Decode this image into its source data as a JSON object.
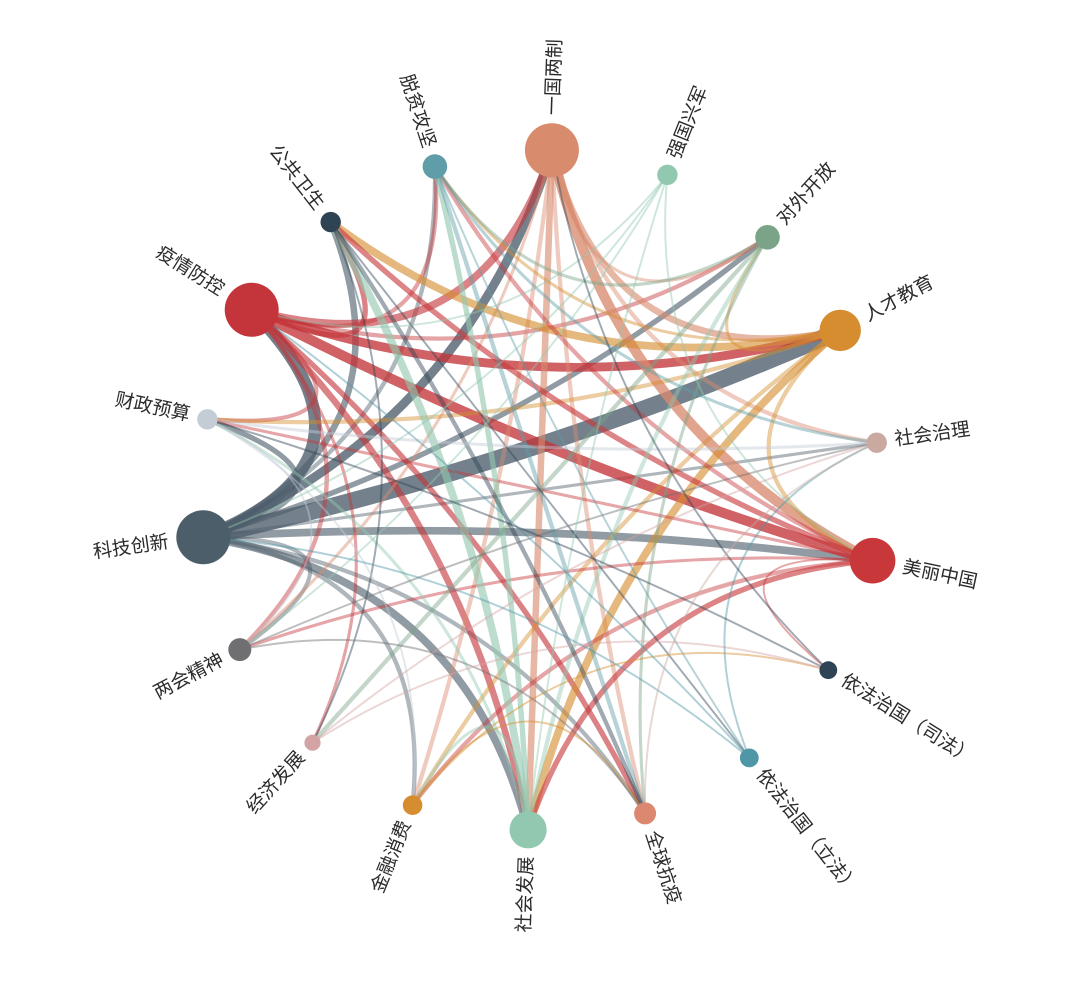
{
  "diagram": {
    "type": "chord-network",
    "nodes": [
      {
        "id": "yiguoliangzhi",
        "label": "一国两制",
        "color": "#d98b6e",
        "weight": 5,
        "icon": "circle-node"
      },
      {
        "id": "qiangguoxingjun",
        "label": "强国兴军",
        "color": "#93c8b0",
        "weight": 1,
        "icon": "circle-node"
      },
      {
        "id": "duiwaikaifang",
        "label": "对外开放",
        "color": "#7aa388",
        "weight": 1.5,
        "icon": "circle-node"
      },
      {
        "id": "rencaijiaoyu",
        "label": "人才教育",
        "color": "#d58d2f",
        "weight": 3.5,
        "icon": "circle-node"
      },
      {
        "id": "shehuizhili",
        "label": "社会治理",
        "color": "#c9a9a0",
        "weight": 1,
        "icon": "circle-node"
      },
      {
        "id": "meilizhongguo",
        "label": "美丽中国",
        "color": "#c8383b",
        "weight": 4,
        "icon": "circle-node"
      },
      {
        "id": "yifazhiguo_sifa",
        "label": "依法治国（司法）",
        "color": "#2e4354",
        "weight": 0.7,
        "icon": "circle-node"
      },
      {
        "id": "yifazhiguo_lifa",
        "label": "依法治国（立法）",
        "color": "#4f96a6",
        "weight": 0.8,
        "icon": "circle-node"
      },
      {
        "id": "quanqiukangyi",
        "label": "全球抗疫",
        "color": "#dc8870",
        "weight": 1.2,
        "icon": "circle-node"
      },
      {
        "id": "shehuifazhan",
        "label": "社会发展",
        "color": "#93c8b0",
        "weight": 3,
        "icon": "circle-node"
      },
      {
        "id": "jinrongxiaofei",
        "label": "金融消费",
        "color": "#d58d2f",
        "weight": 0.9,
        "icon": "circle-node"
      },
      {
        "id": "jingjifazhan",
        "label": "经济发展",
        "color": "#d4a3a3",
        "weight": 0.5,
        "icon": "circle-node"
      },
      {
        "id": "lianghuijingshen",
        "label": "两会精神",
        "color": "#6f6f72",
        "weight": 1.3,
        "icon": "circle-node"
      },
      {
        "id": "kejichuangxin",
        "label": "科技创新",
        "color": "#4d5e6b",
        "weight": 5,
        "icon": "circle-node"
      },
      {
        "id": "caizhengyusuan",
        "label": "财政预算",
        "color": "#c4ccd6",
        "weight": 1,
        "icon": "circle-node"
      },
      {
        "id": "yiqingfangkong",
        "label": "疫情防控",
        "color": "#c3353a",
        "weight": 5,
        "icon": "circle-node"
      },
      {
        "id": "gonggongweisheng",
        "label": "公共卫生",
        "color": "#2e4354",
        "weight": 1,
        "icon": "circle-node"
      },
      {
        "id": "tuopingongjian",
        "label": "脱贫攻坚",
        "color": "#5f9ea8",
        "weight": 1.5,
        "icon": "circle-node"
      }
    ],
    "links": [
      [
        "kejichuangxin",
        "rencaijiaoyu",
        14
      ],
      [
        "kejichuangxin",
        "yiqingfangkong",
        10
      ],
      [
        "kejichuangxin",
        "yiguoliangzhi",
        7
      ],
      [
        "kejichuangxin",
        "meilizhongguo",
        6
      ],
      [
        "kejichuangxin",
        "shehuifazhan",
        6
      ],
      [
        "kejichuangxin",
        "gonggongweisheng",
        5
      ],
      [
        "kejichuangxin",
        "caizhengyusuan",
        4
      ],
      [
        "kejichuangxin",
        "lianghuijingshen",
        3
      ],
      [
        "kejichuangxin",
        "jinrongxiaofei",
        3
      ],
      [
        "kejichuangxin",
        "duiwaikaifang",
        4
      ],
      [
        "kejichuangxin",
        "tuopingongjian",
        3
      ],
      [
        "kejichuangxin",
        "quanqiukangyi",
        3
      ],
      [
        "kejichuangxin",
        "shehuizhili",
        2
      ],
      [
        "yiqingfangkong",
        "meilizhongguo",
        8
      ],
      [
        "yiqingfangkong",
        "rencaijiaoyu",
        7
      ],
      [
        "yiqingfangkong",
        "shehuifazhan",
        5
      ],
      [
        "yiqingfangkong",
        "yiguoliangzhi",
        6
      ],
      [
        "yiqingfangkong",
        "quanqiukangyi",
        4
      ],
      [
        "yiqingfangkong",
        "lianghuijingshen",
        3
      ],
      [
        "yiqingfangkong",
        "gonggongweisheng",
        4
      ],
      [
        "yiqingfangkong",
        "duiwaikaifang",
        3
      ],
      [
        "yiqingfangkong",
        "caizhengyusuan",
        3
      ],
      [
        "yiqingfangkong",
        "jingjifazhan",
        2
      ],
      [
        "yiqingfangkong",
        "tuopingongjian",
        3
      ],
      [
        "yiguoliangzhi",
        "meilizhongguo",
        8
      ],
      [
        "yiguoliangzhi",
        "shehuifazhan",
        5
      ],
      [
        "yiguoliangzhi",
        "rencaijiaoyu",
        5
      ],
      [
        "yiguoliangzhi",
        "jinrongxiaofei",
        3
      ],
      [
        "yiguoliangzhi",
        "quanqiukangyi",
        3
      ],
      [
        "yiguoliangzhi",
        "shehuizhili",
        3
      ],
      [
        "yiguoliangzhi",
        "duiwaikaifang",
        2
      ],
      [
        "yiguoliangzhi",
        "lianghuijingshen",
        2
      ],
      [
        "rencaijiaoyu",
        "shehuifazhan",
        6
      ],
      [
        "rencaijiaoyu",
        "gonggongweisheng",
        6
      ],
      [
        "rencaijiaoyu",
        "meilizhongguo",
        3
      ],
      [
        "rencaijiaoyu",
        "caizhengyusuan",
        3
      ],
      [
        "rencaijiaoyu",
        "jinrongxiaofei",
        3
      ],
      [
        "rencaijiaoyu",
        "tuopingongjian",
        2
      ],
      [
        "rencaijiaoyu",
        "duiwaikaifang",
        2
      ],
      [
        "meilizhongguo",
        "shehuifazhan",
        4
      ],
      [
        "meilizhongguo",
        "gonggongweisheng",
        4
      ],
      [
        "meilizhongguo",
        "tuopingongjian",
        3
      ],
      [
        "meilizhongguo",
        "jinrongxiaofei",
        3
      ],
      [
        "meilizhongguo",
        "caizhengyusuan",
        2
      ],
      [
        "meilizhongguo",
        "lianghuijingshen",
        2
      ],
      [
        "meilizhongguo",
        "yifazhiguo_sifa",
        1
      ],
      [
        "shehuifazhan",
        "gonggongweisheng",
        6
      ],
      [
        "shehuifazhan",
        "tuopingongjian",
        4
      ],
      [
        "shehuifazhan",
        "duiwaikaifang",
        3
      ],
      [
        "shehuifazhan",
        "caizhengyusuan",
        2
      ],
      [
        "shehuifazhan",
        "jinrongxiaofei",
        2
      ],
      [
        "duiwaikaifang",
        "jingjifazhan",
        3
      ],
      [
        "duiwaikaifang",
        "tuopingongjian",
        2
      ],
      [
        "duiwaikaifang",
        "quanqiukangyi",
        2
      ],
      [
        "tuopingongjian",
        "quanqiukangyi",
        3
      ],
      [
        "tuopingongjian",
        "shehuizhili",
        2
      ],
      [
        "tuopingongjian",
        "yifazhiguo_lifa",
        1
      ],
      [
        "gonggongweisheng",
        "quanqiukangyi",
        3
      ],
      [
        "gonggongweisheng",
        "yifazhiguo_lifa",
        1
      ],
      [
        "gonggongweisheng",
        "jingjifazhan",
        1
      ],
      [
        "caizhengyusuan",
        "shehuizhili",
        2
      ],
      [
        "caizhengyusuan",
        "lianghuijingshen",
        1
      ],
      [
        "caizhengyusuan",
        "jinrongxiaofei",
        1
      ],
      [
        "lianghuijingshen",
        "shehuizhili",
        1
      ],
      [
        "lianghuijingshen",
        "quanqiukangyi",
        1
      ],
      [
        "jinrongxiaofei",
        "quanqiukangyi",
        1
      ],
      [
        "jinrongxiaofei",
        "yifazhiguo_sifa",
        1
      ],
      [
        "jingjifazhan",
        "shehuizhili",
        1
      ],
      [
        "jingjifazhan",
        "yifazhiguo_sifa",
        1
      ],
      [
        "qiangguoxingjun",
        "kejichuangxin",
        1
      ],
      [
        "qiangguoxingjun",
        "yiqingfangkong",
        1
      ],
      [
        "qiangguoxingjun",
        "shehuifazhan",
        1
      ],
      [
        "qiangguoxingjun",
        "lianghuijingshen",
        1
      ],
      [
        "qiangguoxingjun",
        "meilizhongguo",
        1
      ],
      [
        "yifazhiguo_lifa",
        "kejichuangxin",
        1
      ],
      [
        "yifazhiguo_lifa",
        "yiqingfangkong",
        1
      ],
      [
        "yifazhiguo_lifa",
        "shehuizhili",
        1
      ],
      [
        "yifazhiguo_sifa",
        "yiguoliangzhi",
        1
      ],
      [
        "yifazhiguo_sifa",
        "caizhengyusuan",
        1
      ],
      [
        "shehuizhili",
        "quanqiukangyi",
        1
      ]
    ]
  }
}
